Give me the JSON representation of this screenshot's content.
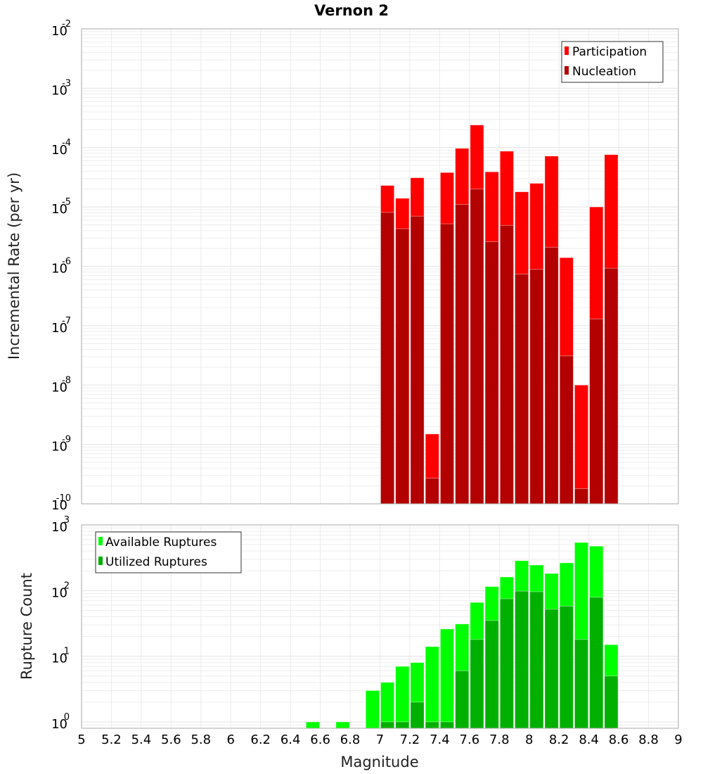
{
  "chart_data": [
    {
      "type": "bar",
      "title": "Vernon 2",
      "xlabel": "",
      "ylabel": "Incremental Rate (per yr)",
      "yscale": "log",
      "xlim": [
        5,
        9
      ],
      "ylim": [
        1e-10,
        0.01
      ],
      "bin_width": 0.1,
      "grid": true,
      "legend_position": "top-right",
      "x": [
        7.05,
        7.15,
        7.25,
        7.35,
        7.45,
        7.55,
        7.65,
        7.75,
        7.85,
        7.95,
        8.05,
        8.15,
        8.25,
        8.35,
        8.45,
        8.55
      ],
      "series": [
        {
          "name": "Participation",
          "color": "#ff0000",
          "values": [
            2.3e-05,
            1.4e-05,
            3.1e-05,
            1.5e-09,
            3.8e-05,
            9.7e-05,
            0.00024,
            3.9e-05,
            8.7e-05,
            1.8e-05,
            2.5e-05,
            7.2e-05,
            1.4e-06,
            1e-08,
            1e-05,
            7.6e-05
          ]
        },
        {
          "name": "Nucleation",
          "color": "#b30000",
          "values": [
            8.1e-06,
            4.3e-06,
            7e-06,
            2.7e-10,
            5.2e-06,
            1.1e-05,
            2e-05,
            2.6e-06,
            4.9e-06,
            7.4e-07,
            8.9e-07,
            2.1e-06,
            3.1e-08,
            1.8e-10,
            1.3e-07,
            9.3e-07
          ]
        }
      ],
      "y_tick_exponents": [
        "-10",
        "-9",
        "-8",
        "-7",
        "-6",
        "-5",
        "-4",
        "-3",
        "-2"
      ]
    },
    {
      "type": "bar",
      "title": "",
      "xlabel": "Magnitude",
      "ylabel": "Rupture Count",
      "yscale": "log",
      "xlim": [
        5,
        9
      ],
      "ylim": [
        0.8,
        1000
      ],
      "bin_width": 0.1,
      "grid": true,
      "legend_position": "top-left",
      "x": [
        6.55,
        6.65,
        6.75,
        6.85,
        6.95,
        7.05,
        7.15,
        7.25,
        7.35,
        7.45,
        7.55,
        7.65,
        7.75,
        7.85,
        7.95,
        8.05,
        8.15,
        8.25,
        8.35,
        8.45,
        8.55
      ],
      "series": [
        {
          "name": "Available Ruptures",
          "color": "#00ff00",
          "values": [
            1,
            0,
            1,
            0,
            3,
            4,
            7,
            8,
            14,
            26,
            31,
            66,
            115,
            161,
            285,
            245,
            182,
            264,
            540,
            475,
            15
          ]
        },
        {
          "name": "Utilized Ruptures",
          "color": "#00b000",
          "values": [
            0,
            0,
            0,
            0,
            0,
            1,
            1,
            2,
            1,
            1,
            6,
            18,
            35,
            75,
            98,
            96,
            52,
            58,
            18,
            79,
            5
          ]
        }
      ],
      "y_tick_exponents": [
        "0",
        "1",
        "2",
        "3"
      ],
      "x_tick_labels": [
        "5",
        "5.2",
        "5.4",
        "5.6",
        "5.8",
        "6",
        "6.2",
        "6.4",
        "6.6",
        "6.8",
        "7",
        "7.2",
        "7.4",
        "7.6",
        "7.8",
        "8",
        "8.2",
        "8.4",
        "8.6",
        "8.8",
        "9"
      ]
    }
  ]
}
